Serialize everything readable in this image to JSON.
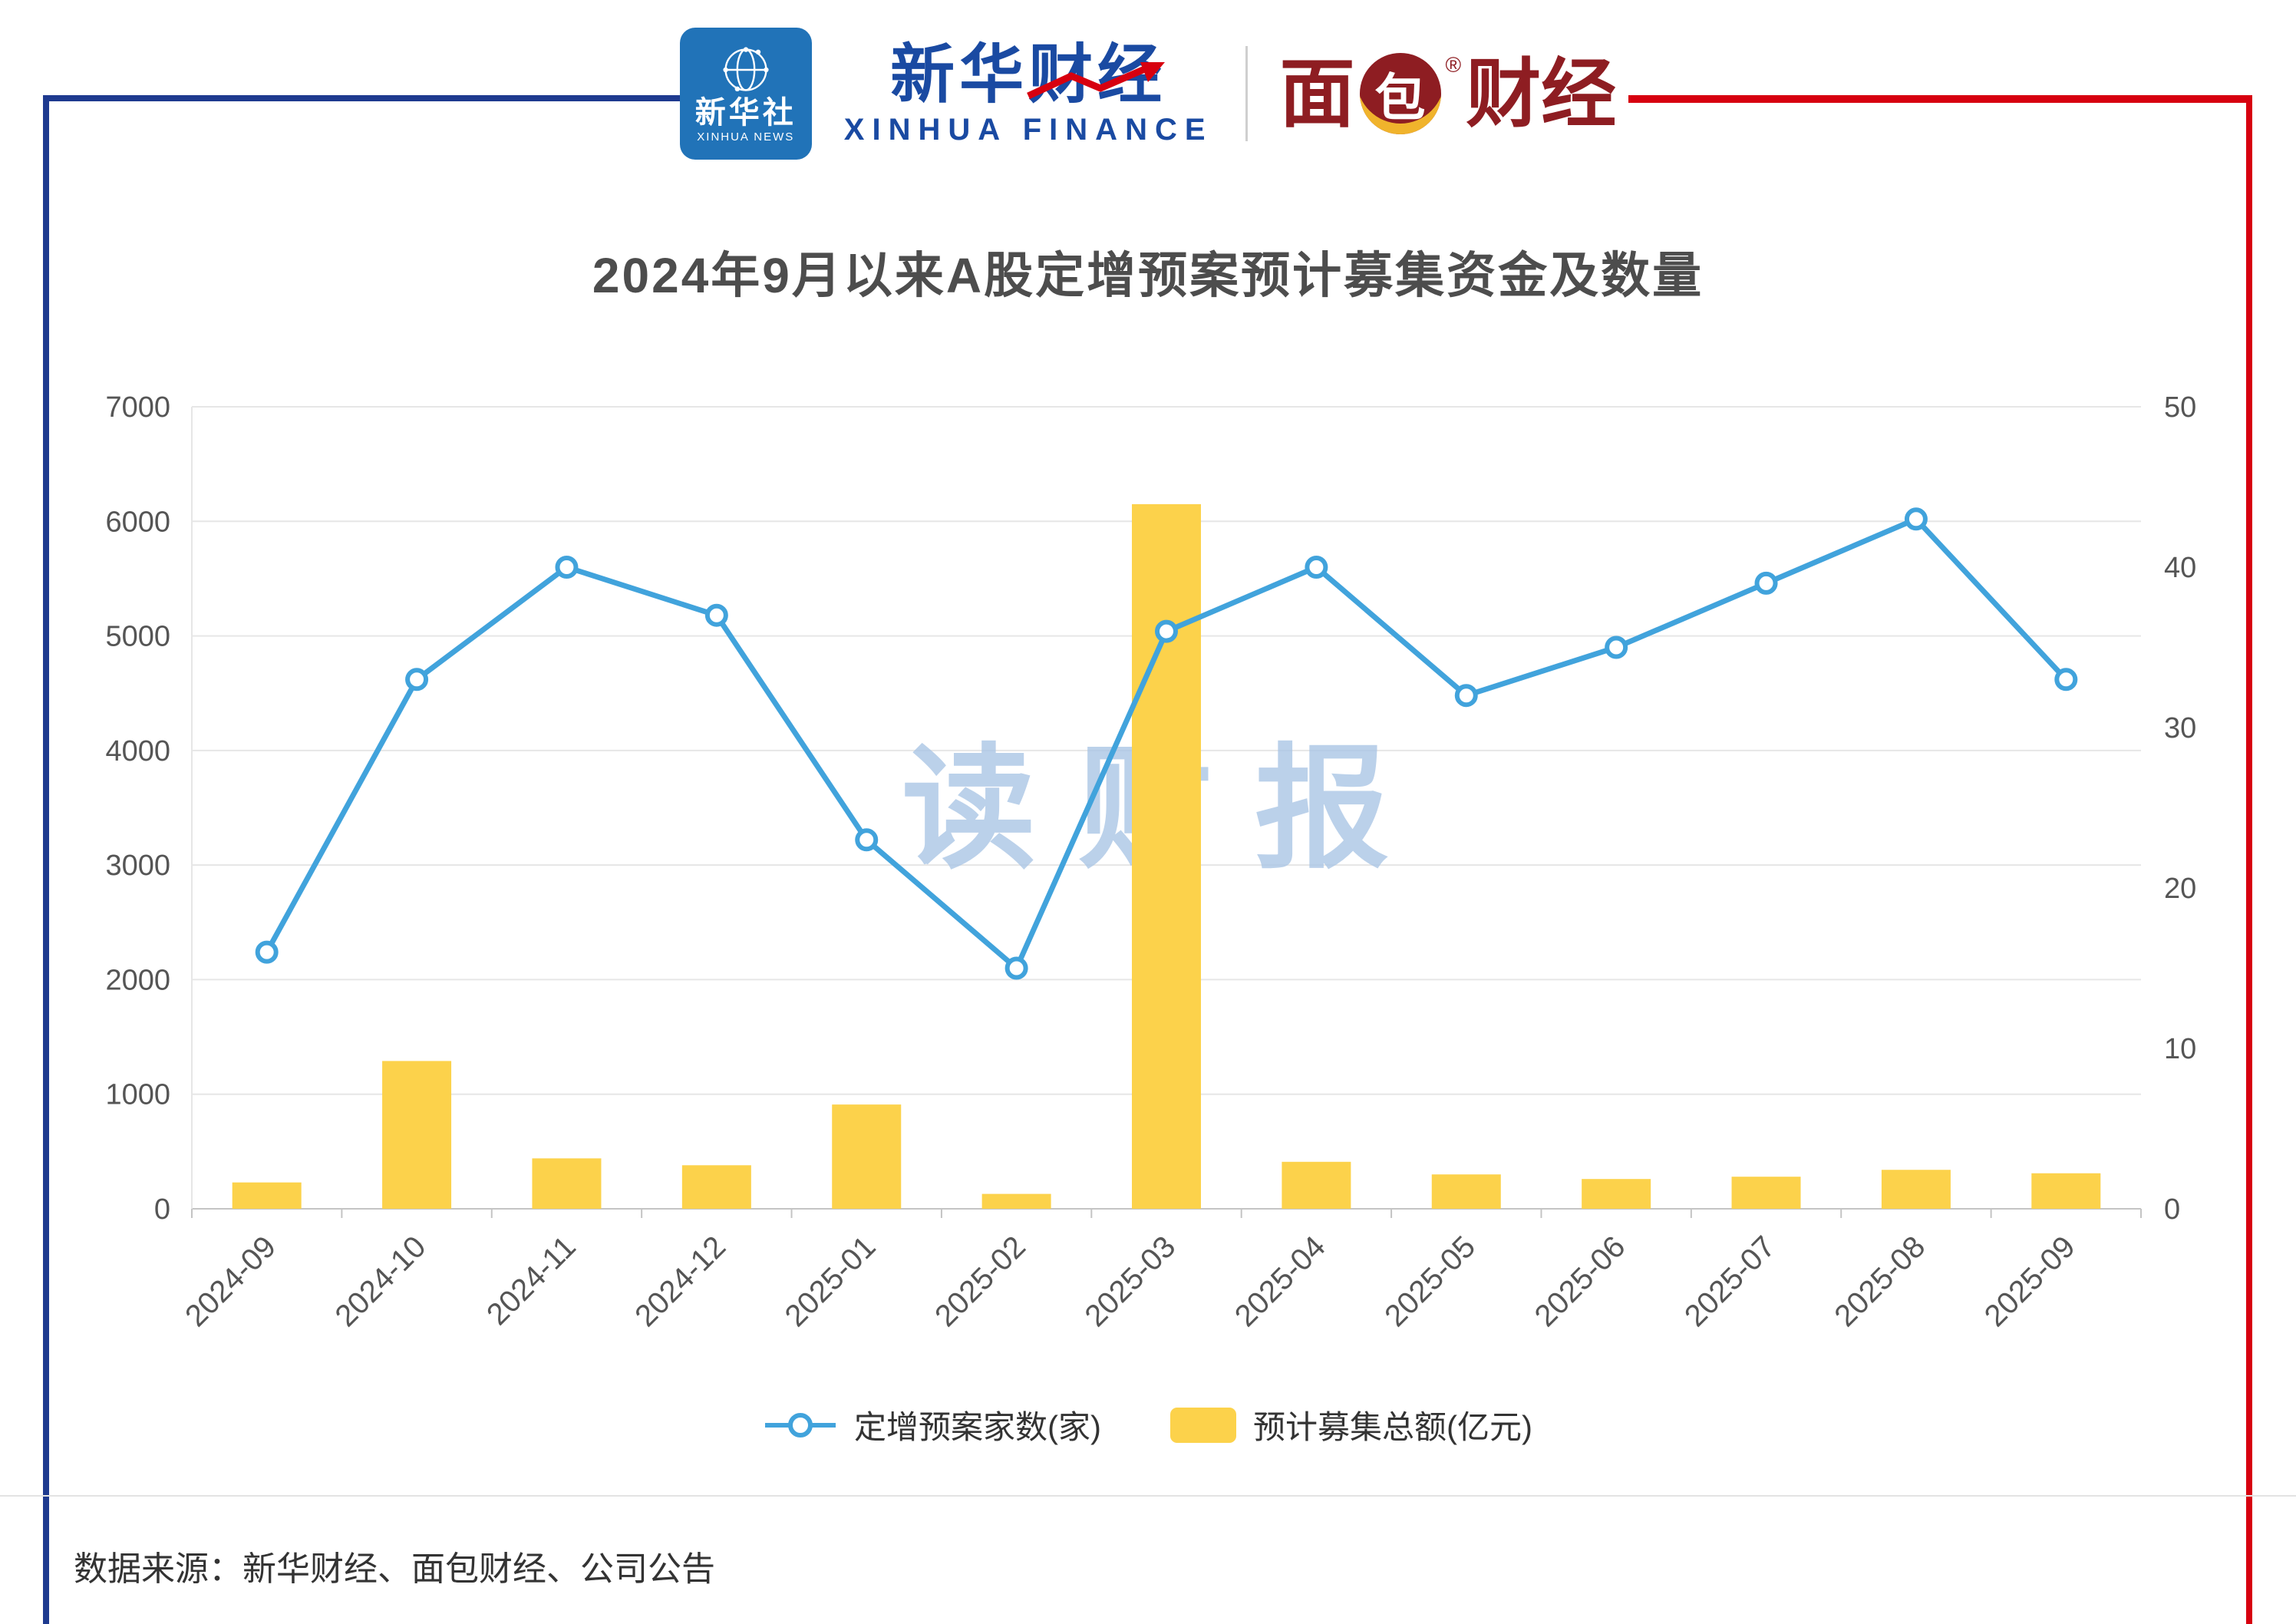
{
  "colors": {
    "frame-blue": "#1e3a8f",
    "frame-red": "#d7000f",
    "line-blue": "#41a3dc",
    "bar-yellow": "#fcd24b",
    "title-gray": "#4d4d4d",
    "axis-gray": "#555555",
    "grid-gray": "#e6e6e6",
    "axis-line-gray": "#c4c4c4",
    "watermark-blue": "#abc6e5",
    "xinhua-blue": "#1a4aa2",
    "news-logo-blue": "#2173b8",
    "mianbao-red": "#8e1d22",
    "mianbao-yellow": "#f0b32c",
    "text-dark": "#333333"
  },
  "header": {
    "xinhua_news": {
      "cn": "新华社",
      "en": "XINHUA NEWS"
    },
    "xinhua_finance": {
      "cn": "新华财经",
      "en": "XINHUA FINANCE"
    },
    "mianbao": {
      "char1": "面",
      "char2": "包",
      "rest": "财经",
      "reg": "®"
    }
  },
  "title": {
    "text": "2024年9月以来A股定增预案预计募集资金及数量"
  },
  "watermark": {
    "text": "读财报"
  },
  "chart_data": {
    "type": "bar+line combo",
    "title": "2024年9月以来A股定增预案预计募集资金及数量",
    "categories": [
      "2024-09",
      "2024-10",
      "2024-11",
      "2024-12",
      "2025-01",
      "2025-02",
      "2025-03",
      "2025-04",
      "2025-05",
      "2025-06",
      "2025-07",
      "2025-08",
      "2025-09"
    ],
    "series": [
      {
        "name": "定增预案家数(家)",
        "type": "line",
        "yaxis": "right",
        "values": [
          16,
          33,
          40,
          37,
          23,
          15,
          36,
          40,
          32,
          35,
          39,
          43,
          33
        ]
      },
      {
        "name": "预计募集总额(亿元)",
        "type": "bar",
        "yaxis": "left",
        "values": [
          230,
          1290,
          440,
          380,
          910,
          130,
          6150,
          410,
          300,
          260,
          280,
          340,
          310
        ]
      }
    ],
    "left_axis": {
      "min": 0,
      "max": 7000,
      "ticks": [
        0,
        1000,
        2000,
        3000,
        4000,
        5000,
        6000,
        7000
      ]
    },
    "right_axis": {
      "min": 0,
      "max": 50,
      "ticks": [
        0,
        10,
        20,
        30,
        40,
        50
      ]
    },
    "grid": true,
    "legend_position": "bottom"
  },
  "footer": {
    "source": "数据来源：新华财经、面包财经、公司公告"
  }
}
